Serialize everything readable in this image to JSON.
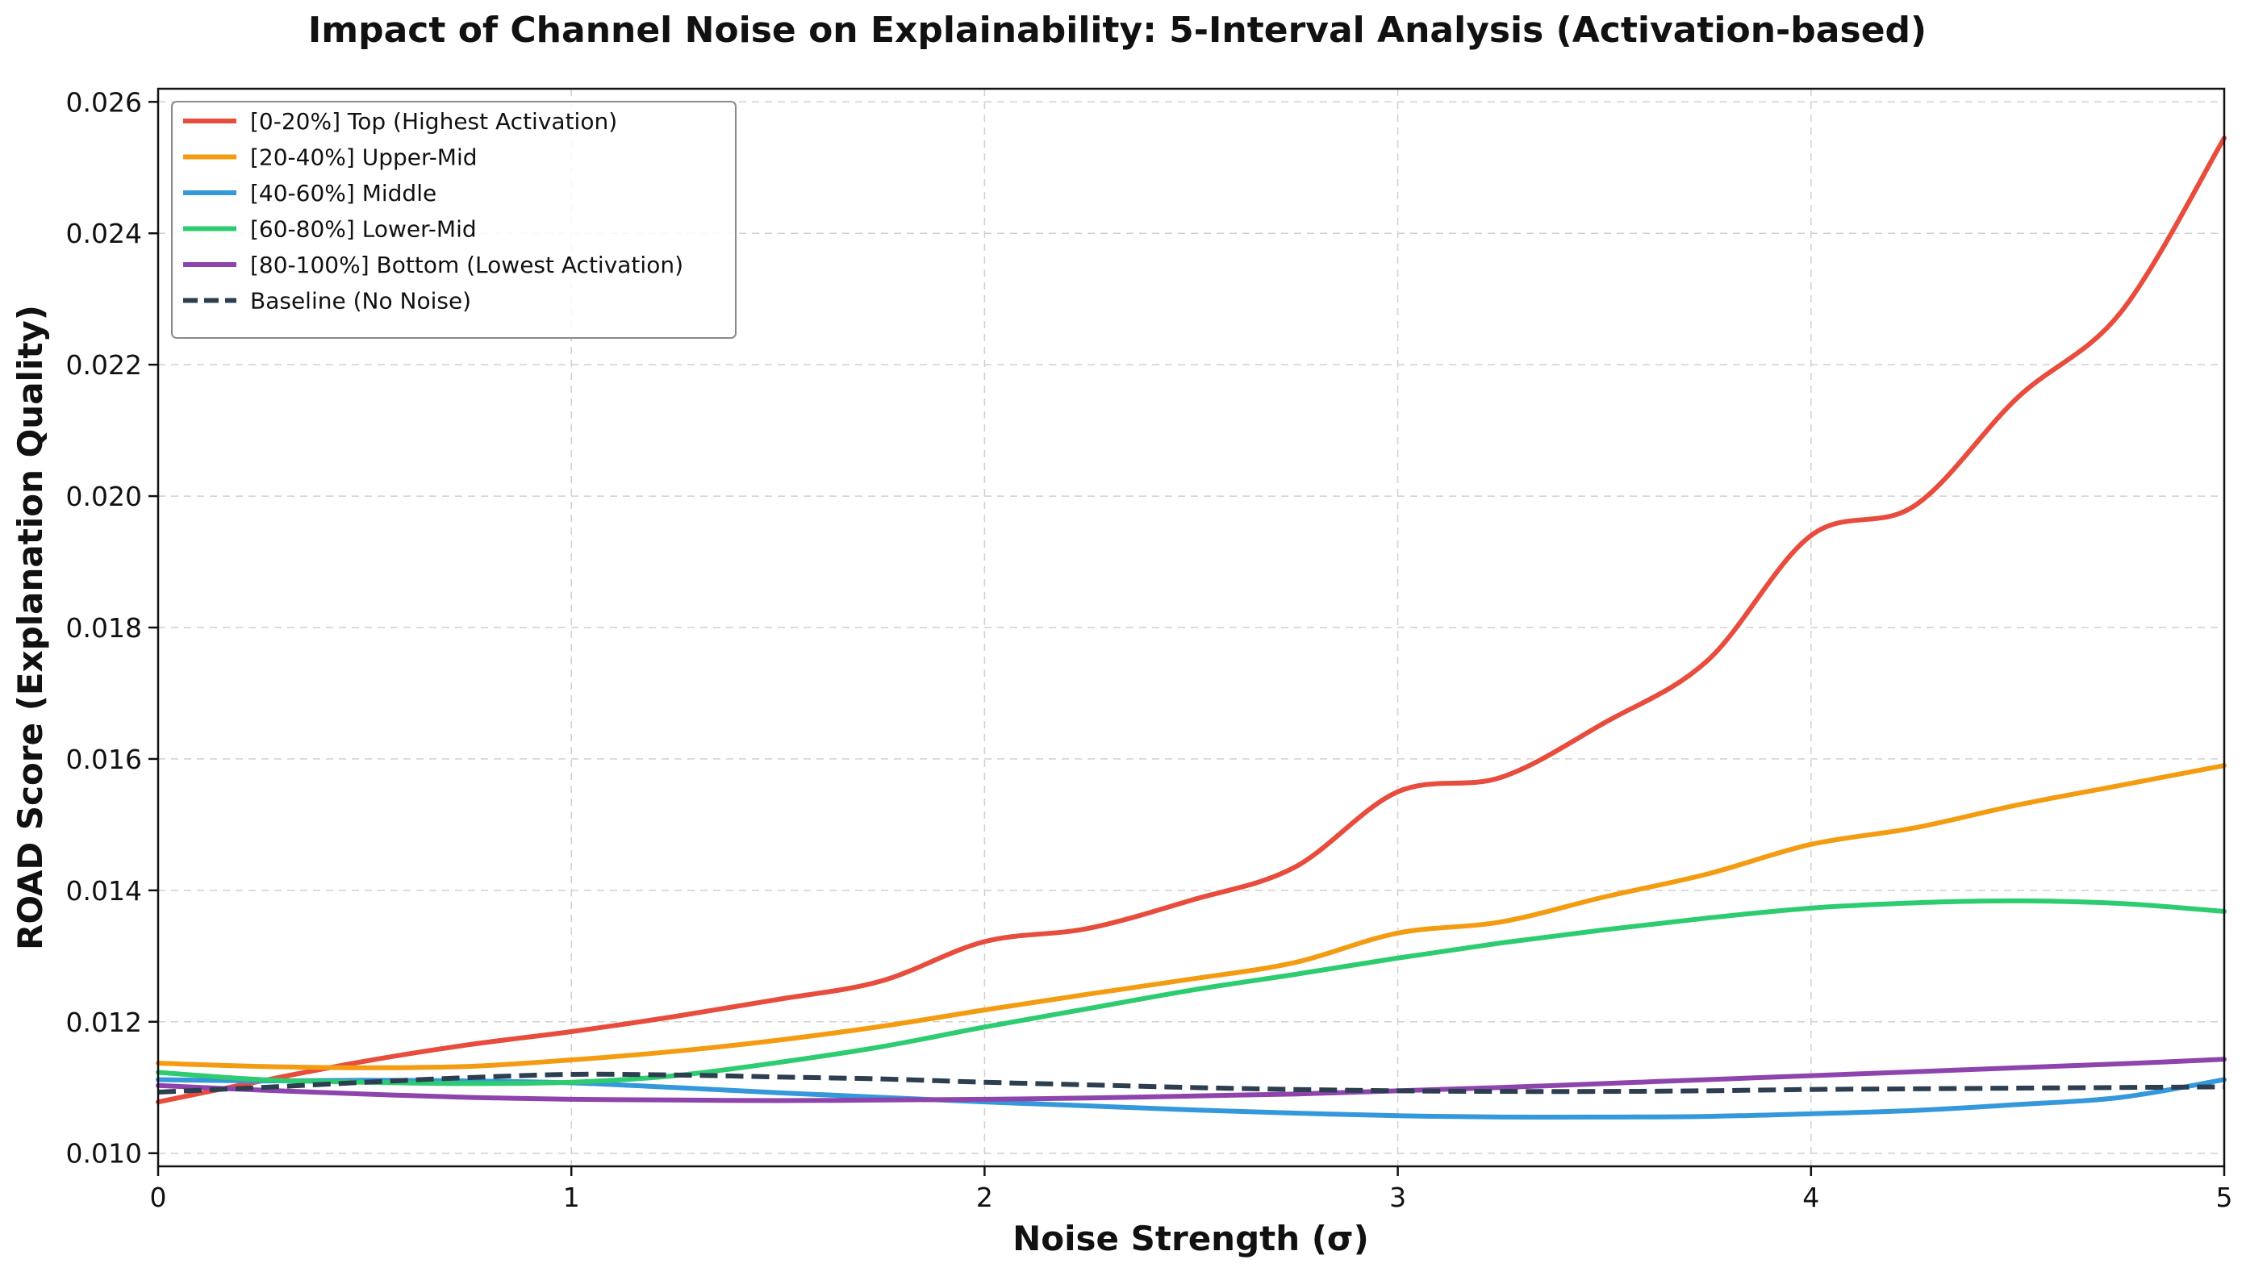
{
  "chart_data": {
    "type": "line",
    "title": "Impact of Channel Noise on Explainability: 5-Interval Analysis (Activation-based)",
    "xlabel": "Noise Strength (σ)",
    "ylabel": "ROAD Score (Explanation Quality)",
    "xlim": [
      0,
      5
    ],
    "ylim": [
      0.0098,
      0.0262
    ],
    "xticks": [
      0,
      1,
      2,
      3,
      4,
      5
    ],
    "xtick_labels": [
      "0",
      "1",
      "2",
      "3",
      "4",
      "5"
    ],
    "yticks": [
      0.01,
      0.012,
      0.014,
      0.016,
      0.018,
      0.02,
      0.022,
      0.024,
      0.026
    ],
    "ytick_labels": [
      "0.010",
      "0.012",
      "0.014",
      "0.016",
      "0.018",
      "0.020",
      "0.022",
      "0.024",
      "0.026"
    ],
    "grid": true,
    "legend_position": "top-left",
    "x": [
      0,
      0.25,
      0.5,
      0.75,
      1,
      1.25,
      1.5,
      1.75,
      2,
      2.25,
      2.5,
      2.75,
      3,
      3.25,
      3.5,
      3.75,
      4,
      4.25,
      4.5,
      4.75,
      5
    ],
    "series": [
      {
        "name": "[0-20%] Top (Highest Activation)",
        "color": "#e74c3c",
        "dash": "solid",
        "values": [
          0.01078,
          0.0111,
          0.0114,
          0.01165,
          0.01185,
          0.01208,
          0.01234,
          0.01262,
          0.01322,
          0.01342,
          0.01385,
          0.01435,
          0.0155,
          0.01572,
          0.01655,
          0.0175,
          0.0194,
          0.01985,
          0.0215,
          0.0228,
          0.02545
        ]
      },
      {
        "name": "[20-40%] Upper-Mid",
        "color": "#f39c12",
        "dash": "solid",
        "values": [
          0.01137,
          0.01132,
          0.0113,
          0.01132,
          0.01142,
          0.01155,
          0.01172,
          0.01193,
          0.01218,
          0.01242,
          0.01265,
          0.0129,
          0.01335,
          0.01352,
          0.0139,
          0.01425,
          0.0147,
          0.01495,
          0.0153,
          0.0156,
          0.0159
        ]
      },
      {
        "name": "[40-60%] Middle",
        "color": "#3498db",
        "dash": "solid",
        "values": [
          0.01112,
          0.0111,
          0.01111,
          0.0111,
          0.01107,
          0.011,
          0.01092,
          0.01085,
          0.01078,
          0.01072,
          0.01066,
          0.01061,
          0.01057,
          0.01055,
          0.01055,
          0.01056,
          0.0106,
          0.01065,
          0.01074,
          0.01085,
          0.01112
        ]
      },
      {
        "name": "[60-80%] Lower-Mid",
        "color": "#2ecc71",
        "dash": "solid",
        "values": [
          0.01123,
          0.01112,
          0.01108,
          0.01106,
          0.01108,
          0.01118,
          0.01138,
          0.01162,
          0.01192,
          0.0122,
          0.01248,
          0.01272,
          0.01297,
          0.0132,
          0.0134,
          0.01358,
          0.01373,
          0.01381,
          0.01384,
          0.0138,
          0.01368
        ]
      },
      {
        "name": "[80-100%] Bottom (Lowest Activation)",
        "color": "#8e44ad",
        "dash": "solid",
        "values": [
          0.01103,
          0.01096,
          0.0109,
          0.01085,
          0.01082,
          0.01081,
          0.0108,
          0.01081,
          0.01082,
          0.01084,
          0.01087,
          0.0109,
          0.01095,
          0.011,
          0.01106,
          0.01112,
          0.01118,
          0.01124,
          0.0113,
          0.01136,
          0.01143
        ]
      },
      {
        "name": "Baseline (No Noise)",
        "color": "#2c3e50",
        "dash": "dashed",
        "values": [
          0.01093,
          0.011,
          0.01108,
          0.01115,
          0.0112,
          0.01119,
          0.01116,
          0.01113,
          0.01108,
          0.01104,
          0.011,
          0.01097,
          0.01095,
          0.01094,
          0.01094,
          0.01095,
          0.01097,
          0.01098,
          0.01099,
          0.011,
          0.01101
        ]
      }
    ]
  }
}
